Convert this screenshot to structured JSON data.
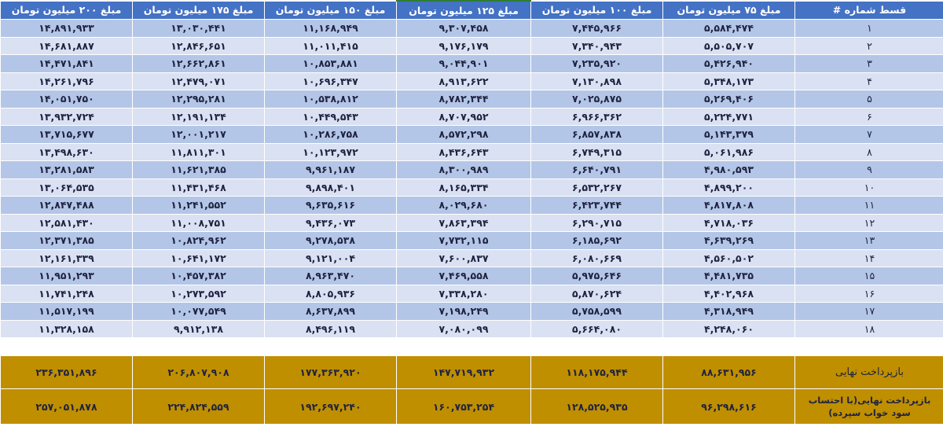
{
  "table": {
    "headers": [
      "قسط شماره #",
      "مبلغ ۷۵ میلیون تومان",
      "مبلغ ۱۰۰ میلیون تومان",
      "مبلغ ۱۲۵ میلیون تومان",
      "مبلغ ۱۵۰ میلیون تومان",
      "مبلغ ۱۷۵ میلیون تومان",
      "مبلغ ۲۰۰ میلیون تومان"
    ],
    "rows": [
      [
        "۱",
        "۵,۵۸۴,۴۷۴",
        "۷,۴۴۵,۹۶۶",
        "۹,۳۰۷,۴۵۸",
        "۱۱,۱۶۸,۹۴۹",
        "۱۳,۰۳۰,۴۴۱",
        "۱۴,۸۹۱,۹۳۳"
      ],
      [
        "۲",
        "۵,۵۰۵,۷۰۷",
        "۷,۳۴۰,۹۴۳",
        "۹,۱۷۶,۱۷۹",
        "۱۱,۰۱۱,۴۱۵",
        "۱۲,۸۴۶,۶۵۱",
        "۱۴,۶۸۱,۸۸۷"
      ],
      [
        "۳",
        "۵,۴۲۶,۹۴۰",
        "۷,۲۳۵,۹۲۰",
        "۹,۰۴۴,۹۰۱",
        "۱۰,۸۵۳,۸۸۱",
        "۱۲,۶۶۲,۸۶۱",
        "۱۴,۴۷۱,۸۴۱"
      ],
      [
        "۴",
        "۵,۳۴۸,۱۷۳",
        "۷,۱۳۰,۸۹۸",
        "۸,۹۱۳,۶۲۲",
        "۱۰,۶۹۶,۳۴۷",
        "۱۲,۴۷۹,۰۷۱",
        "۱۴,۲۶۱,۷۹۶"
      ],
      [
        "۵",
        "۵,۲۶۹,۴۰۶",
        "۷,۰۲۵,۸۷۵",
        "۸,۷۸۲,۳۴۴",
        "۱۰,۵۳۸,۸۱۲",
        "۱۲,۲۹۵,۲۸۱",
        "۱۴,۰۵۱,۷۵۰"
      ],
      [
        "۶",
        "۵,۲۲۴,۷۷۱",
        "۶,۹۶۶,۳۶۲",
        "۸,۷۰۷,۹۵۲",
        "۱۰,۴۴۹,۵۴۳",
        "۱۲,۱۹۱,۱۳۴",
        "۱۳,۹۳۲,۷۲۴"
      ],
      [
        "۷",
        "۵,۱۴۳,۳۷۹",
        "۶,۸۵۷,۸۳۸",
        "۸,۵۷۲,۲۹۸",
        "۱۰,۲۸۶,۷۵۸",
        "۱۲,۰۰۱,۲۱۷",
        "۱۳,۷۱۵,۶۷۷"
      ],
      [
        "۸",
        "۵,۰۶۱,۹۸۶",
        "۶,۷۴۹,۳۱۵",
        "۸,۴۳۶,۶۴۳",
        "۱۰,۱۲۳,۹۷۲",
        "۱۱,۸۱۱,۳۰۱",
        "۱۳,۴۹۸,۶۳۰"
      ],
      [
        "۹",
        "۴,۹۸۰,۵۹۳",
        "۶,۶۴۰,۷۹۱",
        "۸,۳۰۰,۹۸۹",
        "۹,۹۶۱,۱۸۷",
        "۱۱,۶۲۱,۳۸۵",
        "۱۳,۲۸۱,۵۸۳"
      ],
      [
        "۱۰",
        "۴,۸۹۹,۲۰۰",
        "۶,۵۳۲,۲۶۷",
        "۸,۱۶۵,۳۳۴",
        "۹,۸۹۸,۴۰۱",
        "۱۱,۴۳۱,۴۶۸",
        "۱۳,۰۶۴,۵۳۵"
      ],
      [
        "۱۱",
        "۴,۸۱۷,۸۰۸",
        "۶,۴۲۳,۷۴۴",
        "۸,۰۲۹,۶۸۰",
        "۹,۶۳۵,۶۱۶",
        "۱۱,۲۴۱,۵۵۲",
        "۱۲,۸۴۷,۴۸۸"
      ],
      [
        "۱۲",
        "۴,۷۱۸,۰۳۶",
        "۶,۲۹۰,۷۱۵",
        "۷,۸۶۳,۳۹۴",
        "۹,۴۳۶,۰۷۳",
        "۱۱,۰۰۸,۷۵۱",
        "۱۲,۵۸۱,۴۳۰"
      ],
      [
        "۱۳",
        "۴,۶۳۹,۲۶۹",
        "۶,۱۸۵,۶۹۲",
        "۷,۷۳۲,۱۱۵",
        "۹,۲۷۸,۵۳۸",
        "۱۰,۸۲۴,۹۶۲",
        "۱۲,۳۷۱,۳۸۵"
      ],
      [
        "۱۴",
        "۴,۵۶۰,۵۰۲",
        "۶,۰۸۰,۶۶۹",
        "۷,۶۰۰,۸۳۷",
        "۹,۱۲۱,۰۰۴",
        "۱۰,۶۴۱,۱۷۲",
        "۱۲,۱۶۱,۳۳۹"
      ],
      [
        "۱۵",
        "۴,۴۸۱,۷۳۵",
        "۵,۹۷۵,۶۴۶",
        "۷,۴۶۹,۵۵۸",
        "۸,۹۶۳,۴۷۰",
        "۱۰,۴۵۷,۳۸۲",
        "۱۱,۹۵۱,۲۹۳"
      ],
      [
        "۱۶",
        "۴,۴۰۲,۹۶۸",
        "۵,۸۷۰,۶۲۴",
        "۷,۳۳۸,۲۸۰",
        "۸,۸۰۵,۹۳۶",
        "۱۰,۲۷۳,۵۹۲",
        "۱۱,۷۴۱,۲۴۸"
      ],
      [
        "۱۷",
        "۴,۳۱۸,۹۴۹",
        "۵,۷۵۸,۵۹۹",
        "۷,۱۹۸,۲۴۹",
        "۸,۶۳۷,۸۹۹",
        "۱۰,۰۷۷,۵۴۹",
        "۱۱,۵۱۷,۱۹۹"
      ],
      [
        "۱۸",
        "۴,۲۴۸,۰۶۰",
        "۵,۶۶۴,۰۸۰",
        "۷,۰۸۰,۰۹۹",
        "۸,۴۹۶,۱۱۹",
        "۹,۹۱۲,۱۳۸",
        "۱۱,۳۲۸,۱۵۸"
      ]
    ]
  },
  "summary": {
    "final_payment": {
      "label": "بازپرداخت نهایی",
      "values": [
        "۸۸,۶۳۱,۹۵۶",
        "۱۱۸,۱۷۵,۹۴۴",
        "۱۴۷,۷۱۹,۹۳۲",
        "۱۷۷,۳۶۳,۹۲۰",
        "۲۰۶,۸۰۷,۹۰۸",
        "۲۳۶,۳۵۱,۸۹۶"
      ]
    },
    "final_payment_with_deposit": {
      "label": "بازپرداخت نهایی(با احتساب سود خواب سپرده)",
      "values": [
        "۹۶,۲۹۸,۶۱۶",
        "۱۲۸,۵۲۵,۹۳۵",
        "۱۶۰,۷۵۳,۲۵۴",
        "۱۹۲,۶۹۷,۲۴۰",
        "۲۲۴,۸۲۴,۵۵۹",
        "۲۵۷,۰۵۱,۸۷۸"
      ]
    }
  },
  "colors": {
    "header_bg": "#4472c4",
    "row_dark": "#b4c6e7",
    "row_light": "#d9e1f2",
    "summary_bg": "#bf8f00"
  }
}
